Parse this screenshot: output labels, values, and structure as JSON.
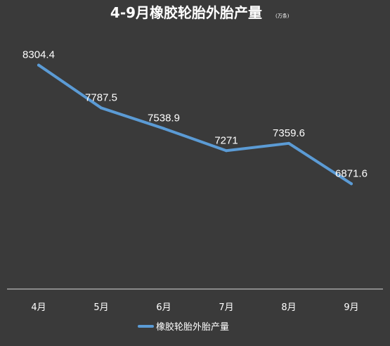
{
  "chart_data": {
    "type": "line",
    "title": "4-9月橡胶轮胎外胎产量",
    "unit": "(万条)",
    "categories": [
      "4月",
      "5月",
      "6月",
      "7月",
      "8月",
      "9月"
    ],
    "series": [
      {
        "name": "橡胶轮胎外胎产量",
        "values": [
          8304.4,
          7787.5,
          7538.9,
          7271,
          7359.6,
          6871.6
        ],
        "labels": [
          "8304.4",
          "7787.5",
          "7538.9",
          "7271",
          "7359.6",
          "6871.6"
        ]
      }
    ],
    "ylim": [
      5600,
      8700
    ],
    "grid": false,
    "legend_position": "bottom",
    "colors": {
      "background": "#3a3a3a",
      "line": "#5b9bd5",
      "text": "#ffffff",
      "axis": "#d9d9d9"
    }
  }
}
